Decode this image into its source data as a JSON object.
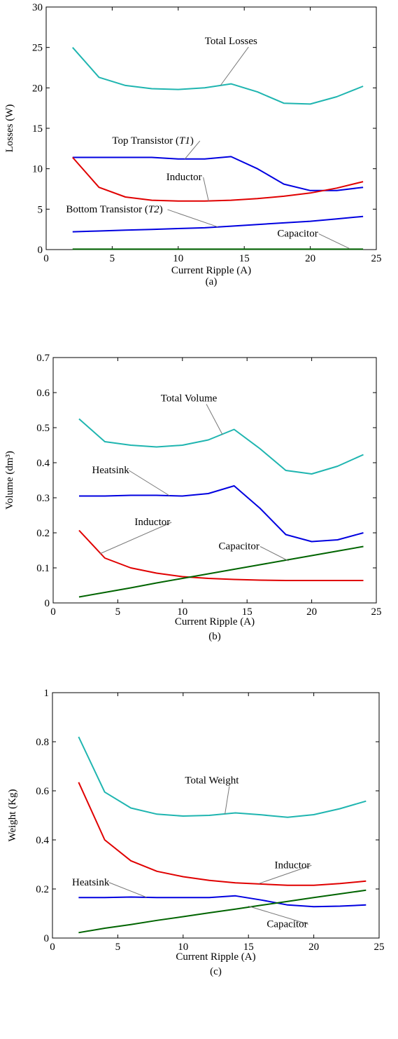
{
  "chart_data": [
    {
      "type": "line",
      "panel_label": "(a)",
      "xlabel": "Current Ripple (A)",
      "ylabel": "Losses (W)",
      "xlim": [
        0,
        25
      ],
      "ylim": [
        0,
        30
      ],
      "xticks": [
        0,
        5,
        10,
        15,
        20,
        25
      ],
      "yticks": [
        0,
        5,
        10,
        15,
        20,
        25,
        30
      ],
      "grid": false,
      "series": [
        {
          "name": "Total Losses",
          "color": "#1fb5b0",
          "x": [
            2,
            4,
            6,
            8,
            10,
            12,
            14,
            16,
            18,
            20,
            22,
            24
          ],
          "y": [
            25.0,
            21.3,
            20.3,
            19.9,
            19.8,
            20.0,
            20.5,
            19.5,
            18.1,
            18.0,
            18.9,
            20.2
          ]
        },
        {
          "name": "Top Transistor (T1)",
          "color": "#0000e0",
          "x": [
            2,
            4,
            6,
            8,
            10,
            12,
            14,
            16,
            18,
            20,
            22,
            24
          ],
          "y": [
            11.4,
            11.4,
            11.4,
            11.4,
            11.2,
            11.2,
            11.5,
            10.0,
            8.1,
            7.3,
            7.3,
            7.7
          ]
        },
        {
          "name": "Inductor",
          "color": "#e00000",
          "x": [
            2,
            4,
            6,
            8,
            10,
            12,
            14,
            16,
            18,
            20,
            22,
            24
          ],
          "y": [
            11.4,
            7.7,
            6.5,
            6.1,
            6.0,
            6.0,
            6.1,
            6.3,
            6.6,
            7.0,
            7.6,
            8.4
          ]
        },
        {
          "name": "Bottom Transistor (T2)",
          "color": "#0000e0",
          "x": [
            2,
            4,
            6,
            8,
            10,
            12,
            14,
            16,
            18,
            20,
            22,
            24
          ],
          "y": [
            2.2,
            2.3,
            2.4,
            2.5,
            2.6,
            2.7,
            2.9,
            3.1,
            3.3,
            3.5,
            3.8,
            4.1
          ]
        },
        {
          "name": "Capacitor",
          "color": "#006400",
          "x": [
            2,
            24
          ],
          "y": [
            0.05,
            0.05
          ]
        }
      ],
      "annotations": [
        {
          "text": "Total Losses",
          "italic": "",
          "series": 0,
          "ax": 13.2,
          "ay": 20.3,
          "tx": 14.0,
          "ty": 25.4,
          "anchor": "middle"
        },
        {
          "text": "Top Transistor (",
          "italic": "T1",
          "text_after": ")",
          "series": 1,
          "ax": 10.5,
          "ay": 11.2,
          "tx": 5.0,
          "ty": 13.1,
          "anchor": "start"
        },
        {
          "text": "Inductor",
          "italic": "",
          "series": 2,
          "ax": 12.3,
          "ay": 6.0,
          "tx": 9.1,
          "ty": 8.6,
          "anchor": "start"
        },
        {
          "text": "Bottom Transistor (",
          "italic": "T2",
          "text_after": ")",
          "series": 3,
          "ax": 13.0,
          "ay": 2.8,
          "tx": 1.5,
          "ty": 4.6,
          "anchor": "start"
        },
        {
          "text": "Capacitor",
          "italic": "",
          "series": 4,
          "ax": 23.0,
          "ay": 0.1,
          "tx": 17.5,
          "ty": 1.6,
          "anchor": "start"
        }
      ]
    },
    {
      "type": "line",
      "panel_label": "(b)",
      "xlabel": "Current Ripple (A)",
      "ylabel": "Volume (dm³)",
      "xlim": [
        0,
        25
      ],
      "ylim": [
        0,
        0.7
      ],
      "xticks": [
        0,
        5,
        10,
        15,
        20,
        25
      ],
      "yticks": [
        0,
        0.1,
        0.2,
        0.3,
        0.4,
        0.5,
        0.6,
        0.7
      ],
      "grid": false,
      "series": [
        {
          "name": "Total Volume",
          "color": "#1fb5b0",
          "x": [
            2,
            4,
            6,
            8,
            10,
            12,
            14,
            16,
            18,
            20,
            22,
            24
          ],
          "y": [
            0.525,
            0.46,
            0.45,
            0.445,
            0.45,
            0.465,
            0.495,
            0.44,
            0.378,
            0.368,
            0.39,
            0.423
          ]
        },
        {
          "name": "Heatsink",
          "color": "#0000e0",
          "x": [
            2,
            4,
            6,
            8,
            10,
            12,
            14,
            16,
            18,
            20,
            22,
            24
          ],
          "y": [
            0.305,
            0.305,
            0.307,
            0.307,
            0.305,
            0.312,
            0.334,
            0.27,
            0.195,
            0.175,
            0.18,
            0.2
          ]
        },
        {
          "name": "Inductor",
          "color": "#e00000",
          "x": [
            2,
            4,
            6,
            8,
            10,
            12,
            14,
            16,
            18,
            20,
            22,
            24
          ],
          "y": [
            0.207,
            0.128,
            0.1,
            0.085,
            0.075,
            0.07,
            0.067,
            0.065,
            0.064,
            0.064,
            0.064,
            0.064
          ]
        },
        {
          "name": "Capacitor",
          "color": "#006400",
          "x": [
            2,
            4,
            6,
            8,
            10,
            12,
            14,
            16,
            18,
            20,
            22,
            24
          ],
          "y": [
            0.017,
            0.03,
            0.043,
            0.057,
            0.07,
            0.083,
            0.096,
            0.109,
            0.122,
            0.135,
            0.148,
            0.161
          ]
        }
      ],
      "annotations": [
        {
          "text": "Total Volume",
          "italic": "",
          "series": 0,
          "ax": 13.1,
          "ay": 0.48,
          "tx": 10.5,
          "ty": 0.575,
          "anchor": "middle"
        },
        {
          "text": "Heatsink",
          "italic": "",
          "series": 1,
          "ax": 9.0,
          "ay": 0.306,
          "tx": 3.0,
          "ty": 0.37,
          "anchor": "start"
        },
        {
          "text": "Inductor",
          "italic": "",
          "series": 2,
          "ax": 3.6,
          "ay": 0.14,
          "tx": 6.3,
          "ty": 0.222,
          "anchor": "start"
        },
        {
          "text": "Capacitor",
          "italic": "",
          "series": 3,
          "ax": 18.2,
          "ay": 0.12,
          "tx": 12.8,
          "ty": 0.153,
          "anchor": "start"
        }
      ]
    },
    {
      "type": "line",
      "panel_label": "(c)",
      "xlabel": "Current Ripple (A)",
      "ylabel": "Weight (Kg)",
      "xlim": [
        0,
        25
      ],
      "ylim": [
        0,
        1
      ],
      "xticks": [
        0,
        5,
        10,
        15,
        20,
        25
      ],
      "yticks": [
        0,
        0.2,
        0.4,
        0.6,
        0.8,
        1
      ],
      "grid": false,
      "series": [
        {
          "name": "Total Weight",
          "color": "#1fb5b0",
          "x": [
            2,
            4,
            6,
            8,
            10,
            12,
            14,
            16,
            18,
            20,
            22,
            24
          ],
          "y": [
            0.82,
            0.595,
            0.53,
            0.505,
            0.497,
            0.5,
            0.51,
            0.502,
            0.492,
            0.503,
            0.527,
            0.558
          ]
        },
        {
          "name": "Inductor",
          "color": "#e00000",
          "x": [
            2,
            4,
            6,
            8,
            10,
            12,
            14,
            16,
            18,
            20,
            22,
            24
          ],
          "y": [
            0.635,
            0.4,
            0.315,
            0.272,
            0.25,
            0.235,
            0.225,
            0.22,
            0.215,
            0.215,
            0.222,
            0.232
          ]
        },
        {
          "name": "Heatsink",
          "color": "#0000e0",
          "x": [
            2,
            4,
            6,
            8,
            10,
            12,
            14,
            16,
            18,
            20,
            22,
            24
          ],
          "y": [
            0.165,
            0.165,
            0.167,
            0.165,
            0.165,
            0.165,
            0.172,
            0.155,
            0.135,
            0.128,
            0.13,
            0.135
          ]
        },
        {
          "name": "Capacitor",
          "color": "#006400",
          "x": [
            2,
            4,
            6,
            8,
            10,
            12,
            14,
            16,
            18,
            20,
            22,
            24
          ],
          "y": [
            0.022,
            0.04,
            0.055,
            0.072,
            0.087,
            0.103,
            0.118,
            0.134,
            0.149,
            0.165,
            0.18,
            0.195
          ]
        }
      ],
      "annotations": [
        {
          "text": "Total Weight",
          "italic": "",
          "series": 0,
          "ax": 13.2,
          "ay": 0.505,
          "tx": 12.2,
          "ty": 0.63,
          "anchor": "middle"
        },
        {
          "text": "Inductor",
          "italic": "",
          "series": 1,
          "ax": 15.8,
          "ay": 0.222,
          "tx": 17.0,
          "ty": 0.285,
          "anchor": "start"
        },
        {
          "text": "Heatsink",
          "italic": "",
          "series": 2,
          "ax": 7.2,
          "ay": 0.166,
          "tx": 1.5,
          "ty": 0.215,
          "anchor": "start"
        },
        {
          "text": "Capacitor",
          "italic": "",
          "series": 3,
          "ax": 15.0,
          "ay": 0.13,
          "tx": 16.4,
          "ty": 0.045,
          "anchor": "start"
        }
      ]
    }
  ]
}
